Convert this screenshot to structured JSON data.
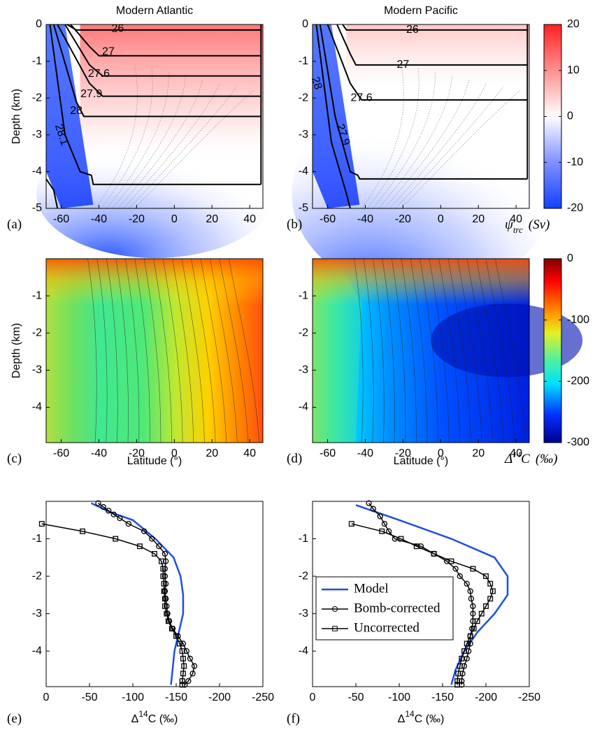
{
  "chart_data": [
    {
      "type": "contour",
      "panel_label": "(a)",
      "title": "Modern Atlantic",
      "ylabel": "Depth (km)",
      "colormap": "bwr",
      "xlim": [
        -68,
        47
      ],
      "xticks": [
        -60,
        -40,
        -20,
        0,
        20,
        40
      ],
      "ylim": [
        -5,
        0
      ],
      "yticks": [
        -5,
        -4,
        -3,
        -2,
        -1,
        0
      ],
      "contour_labels": [
        26,
        27,
        27.6,
        27.9,
        28,
        28.1
      ]
    },
    {
      "type": "contour",
      "panel_label": "(b)",
      "title": "Modern Pacific",
      "colormap": "bwr",
      "xlim": [
        -68,
        47
      ],
      "xticks": [
        -60,
        -40,
        -20,
        0,
        20,
        40
      ],
      "ylim": [
        -5,
        0
      ],
      "yticks": [
        -5,
        -4,
        -3,
        -2,
        -1,
        0
      ],
      "contour_labels": [
        26,
        27,
        27.6,
        27.9,
        28
      ],
      "colorbar": {
        "colormap": "bwr",
        "ylim": [
          -20,
          20
        ],
        "yticks": [
          -20,
          -10,
          0,
          10,
          20
        ],
        "label": {
          "symbol": "ψ",
          "subscript": "trc",
          "unit": "(Sv)"
        }
      }
    },
    {
      "type": "contour",
      "panel_label": "(c)",
      "ylabel": "Depth (km)",
      "xlabel": "Latitude (°)",
      "colormap": "jet-atlantic",
      "xlim": [
        -68,
        47
      ],
      "xticks": [
        -60,
        -40,
        -20,
        0,
        20,
        40
      ],
      "ylim": [
        -4.95,
        0
      ],
      "yticks": [
        -4,
        -3,
        -2,
        -1
      ]
    },
    {
      "type": "contour",
      "panel_label": "(d)",
      "xlabel": "Latitude (°)",
      "colormap": "jet-pacific",
      "xlim": [
        -68,
        47
      ],
      "xticks": [
        -60,
        -40,
        -20,
        0,
        20,
        40
      ],
      "ylim": [
        -4.95,
        0
      ],
      "yticks": [
        -4,
        -3,
        -2,
        -1
      ],
      "colorbar": {
        "colormap": "jet",
        "ylim": [
          -300,
          0
        ],
        "yticks": [
          -300,
          -200,
          -100,
          0
        ],
        "label": {
          "symbol": "Δ",
          "superscript": "14",
          "base": "C",
          "unit": "(‰)"
        }
      }
    },
    {
      "type": "line",
      "panel_label": "(e)",
      "xlabel": {
        "symbol": "Δ",
        "superscript": "14",
        "base": "C (‰)"
      },
      "xlim": [
        0,
        -250
      ],
      "xticks": [
        0,
        -50,
        -100,
        -150,
        -200,
        -250
      ],
      "ylim": [
        -4.95,
        0
      ],
      "yticks": [
        -4,
        -3,
        -2,
        -1
      ],
      "series": [
        {
          "color": "#1f4fe0",
          "marker": "none",
          "x": [
            -52,
            -75,
            -100,
            -126,
            -147,
            -155,
            -158,
            -158,
            -153,
            -148,
            -144
          ],
          "y": [
            -0.05,
            -0.3,
            -0.5,
            -1.0,
            -1.5,
            -2.0,
            -2.5,
            -3.0,
            -3.5,
            -4.0,
            -4.9
          ]
        },
        {
          "color": "#000000",
          "marker": "circle",
          "x": [
            -60,
            -66,
            -72,
            -78,
            -85,
            -95,
            -113,
            -122,
            -130,
            -137,
            -138,
            -137,
            -137,
            -138,
            -137,
            -138,
            -139,
            -140,
            -142,
            -146,
            -152,
            -158,
            -162,
            -166,
            -171,
            -169,
            -164,
            -160
          ],
          "y": [
            -0.05,
            -0.15,
            -0.25,
            -0.35,
            -0.45,
            -0.6,
            -0.8,
            -1.0,
            -1.2,
            -1.4,
            -1.6,
            -1.8,
            -2.0,
            -2.2,
            -2.4,
            -2.6,
            -2.8,
            -3.0,
            -3.2,
            -3.4,
            -3.6,
            -3.8,
            -4.0,
            -4.2,
            -4.4,
            -4.6,
            -4.8,
            -4.9
          ]
        },
        {
          "color": "#000000",
          "marker": "square",
          "x": [
            5,
            -42,
            -80,
            -108,
            -125,
            -133,
            -135,
            -135,
            -136,
            -136,
            -137,
            -137,
            -139,
            -141,
            -145,
            -150,
            -154,
            -157,
            -158,
            -159,
            -158,
            -157,
            -157
          ],
          "y": [
            -0.6,
            -0.8,
            -1.0,
            -1.2,
            -1.4,
            -1.6,
            -1.8,
            -2.0,
            -2.2,
            -2.4,
            -2.6,
            -2.8,
            -3.0,
            -3.2,
            -3.4,
            -3.6,
            -3.8,
            -4.0,
            -4.2,
            -4.4,
            -4.6,
            -4.8,
            -4.9
          ]
        }
      ]
    },
    {
      "type": "line",
      "panel_label": "(f)",
      "xlabel": {
        "symbol": "Δ",
        "superscript": "14",
        "base": "C (‰)"
      },
      "xlim": [
        0,
        -250
      ],
      "xticks": [
        0,
        -50,
        -100,
        -150,
        -200,
        -250
      ],
      "ylim": [
        -4.95,
        0
      ],
      "yticks": [
        -4,
        -3,
        -2,
        -1
      ],
      "series": [
        {
          "name": "Model",
          "color": "#1f4fe0",
          "marker": "none",
          "x": [
            -50,
            -100,
            -160,
            -210,
            -225,
            -225,
            -210,
            -190,
            -175,
            -165,
            -160
          ],
          "y": [
            -0.1,
            -0.5,
            -1.0,
            -1.5,
            -2.0,
            -2.5,
            -3.0,
            -3.5,
            -4.0,
            -4.5,
            -4.9
          ]
        },
        {
          "name": "Bomb-corrected",
          "color": "#000000",
          "marker": "circle",
          "x": [
            -65,
            -70,
            -78,
            -83,
            -88,
            -95,
            -125,
            -140,
            -155,
            -165,
            -170,
            -178,
            -182,
            -183,
            -185,
            -185,
            -185,
            -184,
            -182,
            -182,
            -180,
            -178,
            -175,
            -173,
            -172,
            -172
          ],
          "y": [
            -0.05,
            -0.2,
            -0.4,
            -0.6,
            -0.8,
            -1.0,
            -1.2,
            -1.4,
            -1.6,
            -1.8,
            -2.0,
            -2.2,
            -2.4,
            -2.6,
            -2.8,
            -3.0,
            -3.2,
            -3.4,
            -3.6,
            -3.8,
            -4.0,
            -4.2,
            -4.4,
            -4.6,
            -4.8,
            -4.9
          ]
        },
        {
          "name": "Uncorrected",
          "color": "#000000",
          "marker": "square",
          "x": [
            -45,
            -80,
            -102,
            -120,
            -140,
            -160,
            -185,
            -200,
            -205,
            -208,
            -205,
            -200,
            -195,
            -190,
            -186,
            -182,
            -178,
            -175,
            -172,
            -170,
            -168,
            -167,
            -167
          ],
          "y": [
            -0.6,
            -0.8,
            -1.0,
            -1.2,
            -1.4,
            -1.6,
            -1.8,
            -2.0,
            -2.2,
            -2.4,
            -2.6,
            -2.8,
            -3.0,
            -3.2,
            -3.4,
            -3.6,
            -3.8,
            -4.0,
            -4.2,
            -4.4,
            -4.6,
            -4.8,
            -4.9
          ]
        }
      ]
    }
  ]
}
